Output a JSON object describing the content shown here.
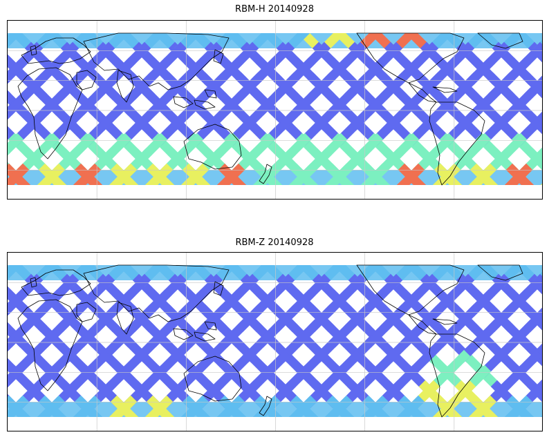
{
  "panels": [
    {
      "title": "RBM-H 20140928",
      "palette": "jet",
      "high_value_regions": [
        "southern-high-latitudes",
        "north-pacific-band"
      ]
    },
    {
      "title": "RBM-Z 20140928",
      "palette": "jet",
      "high_value_regions": [
        "southern-atlantic"
      ]
    }
  ],
  "colors": {
    "low": "#5f6af0",
    "mid_low": "#5fbdf0",
    "mid": "#7cf0c0",
    "mid_high": "#e8f060",
    "high": "#f07050",
    "coastline": "#000000",
    "graticule": "#c8c8c8"
  },
  "map": {
    "projection": "equirectangular",
    "graticule": true,
    "coastlines": true
  }
}
